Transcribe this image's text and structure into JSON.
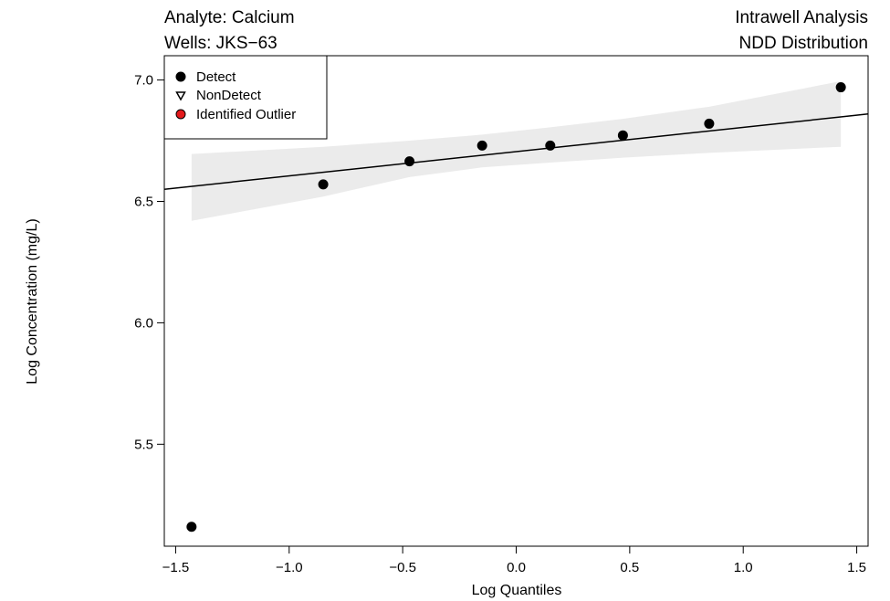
{
  "header": {
    "analyte": "Analyte: Calcium",
    "wells": "Wells: JKS−63",
    "analysis": "Intrawell Analysis",
    "distribution": "NDD Distribution"
  },
  "chart_data": {
    "type": "scatter",
    "xlabel": "Log Quantiles",
    "ylabel": "Log Concentration (mg/L)",
    "xlim": [
      -1.55,
      1.55
    ],
    "ylim": [
      5.08,
      7.1
    ],
    "x_ticks": [
      -1.5,
      -1.0,
      -0.5,
      0.0,
      0.5,
      1.0,
      1.5
    ],
    "x_tick_labels": [
      "−1.5",
      "−1.0",
      "−0.5",
      "0.0",
      "0.5",
      "1.0",
      "1.5"
    ],
    "y_ticks": [
      5.5,
      6.0,
      6.5,
      7.0
    ],
    "y_tick_labels": [
      "5.5",
      "6.0",
      "6.5",
      "7.0"
    ],
    "grid": false,
    "legend_position": "top-left",
    "legend": [
      {
        "label": "Detect",
        "marker": "filled-circle",
        "color": "#000000"
      },
      {
        "label": "NonDetect",
        "marker": "open-triangle-down",
        "color": "#000000"
      },
      {
        "label": "Identified Outlier",
        "marker": "filled-circle",
        "color": "#e31a1c"
      }
    ],
    "points": [
      {
        "x": -1.43,
        "y": 5.16,
        "type": "Detect"
      },
      {
        "x": -0.85,
        "y": 6.57,
        "type": "Detect"
      },
      {
        "x": -0.47,
        "y": 6.665,
        "type": "Detect"
      },
      {
        "x": -0.15,
        "y": 6.73,
        "type": "Detect"
      },
      {
        "x": 0.15,
        "y": 6.73,
        "type": "Detect"
      },
      {
        "x": 0.47,
        "y": 6.772,
        "type": "Detect"
      },
      {
        "x": 0.85,
        "y": 6.82,
        "type": "Detect"
      },
      {
        "x": 1.43,
        "y": 6.97,
        "type": "Detect"
      }
    ],
    "fit_line": {
      "intercept": 6.705,
      "slope": 0.1
    },
    "confidence_band": {
      "color": "#ebebeb",
      "x": [
        -1.43,
        -0.85,
        -0.47,
        -0.15,
        0.15,
        0.47,
        0.85,
        1.43
      ],
      "lower": [
        6.42,
        6.52,
        6.6,
        6.64,
        6.66,
        6.68,
        6.7,
        6.725
      ],
      "upper": [
        6.695,
        6.725,
        6.75,
        6.775,
        6.805,
        6.84,
        6.89,
        6.995
      ]
    }
  }
}
